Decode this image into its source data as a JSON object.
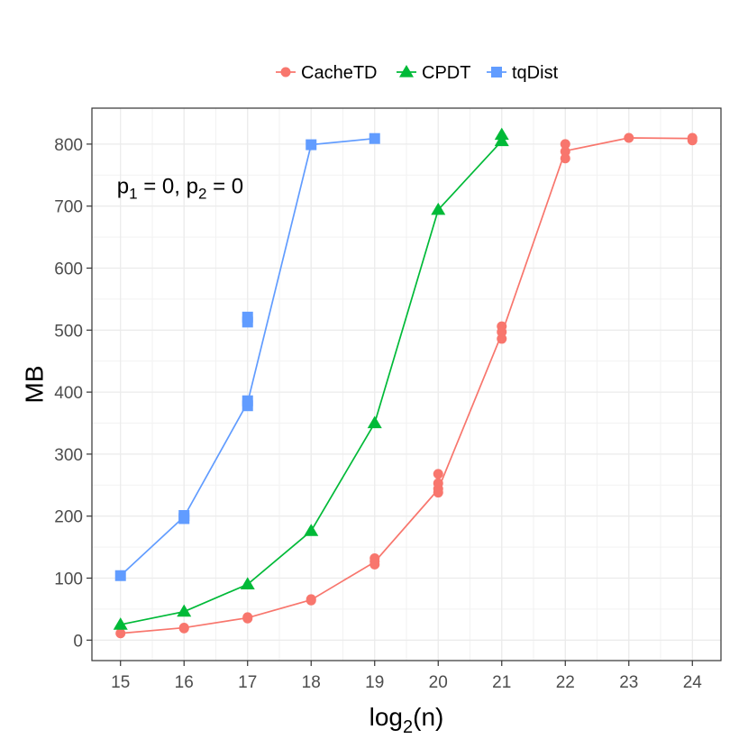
{
  "chart_data": {
    "type": "line",
    "title": "",
    "xlabel": "log",
    "xlabel_sub": "2",
    "xlabel_rest": "(n)",
    "ylabel": "MB",
    "xlim": [
      14.55,
      24.45
    ],
    "ylim": [
      -33,
      858
    ],
    "x_ticks": [
      15,
      16,
      17,
      18,
      19,
      20,
      21,
      22,
      23,
      24
    ],
    "y_ticks": [
      0,
      100,
      200,
      300,
      400,
      500,
      600,
      700,
      800
    ],
    "grid": true,
    "legend_position": "top",
    "annotation": {
      "var1": "p",
      "sub1": "1",
      "eq1": " = 0, ",
      "var2": "p",
      "sub2": "2",
      "eq2": " = 0",
      "x": 15,
      "y": 750
    },
    "series": [
      {
        "name": "CacheTD",
        "color": "#F8766D",
        "shape": "circle",
        "line": [
          [
            15,
            11
          ],
          [
            16,
            20
          ],
          [
            17,
            36
          ],
          [
            18,
            65
          ],
          [
            19,
            126
          ],
          [
            20,
            243
          ],
          [
            21,
            494
          ],
          [
            22,
            789
          ],
          [
            23,
            810
          ],
          [
            24,
            809
          ]
        ],
        "points": [
          [
            15,
            11
          ],
          [
            16,
            19
          ],
          [
            16,
            20
          ],
          [
            17,
            35
          ],
          [
            17,
            37
          ],
          [
            18,
            64
          ],
          [
            18,
            66
          ],
          [
            19,
            122
          ],
          [
            19,
            127
          ],
          [
            19,
            132
          ],
          [
            20,
            238
          ],
          [
            20,
            244
          ],
          [
            20,
            253
          ],
          [
            20,
            268
          ],
          [
            21,
            486
          ],
          [
            21,
            497
          ],
          [
            21,
            506
          ],
          [
            22,
            777
          ],
          [
            22,
            788
          ],
          [
            22,
            800
          ],
          [
            23,
            810
          ],
          [
            24,
            806
          ],
          [
            24,
            810
          ]
        ]
      },
      {
        "name": "CPDT",
        "color": "#00BA38",
        "shape": "triangle",
        "line": [
          [
            15,
            25
          ],
          [
            16,
            46
          ],
          [
            17,
            90
          ],
          [
            18,
            176
          ],
          [
            19,
            350
          ],
          [
            20,
            694
          ],
          [
            21,
            805
          ]
        ],
        "points": [
          [
            15,
            25
          ],
          [
            16,
            46
          ],
          [
            17,
            90
          ],
          [
            18,
            176
          ],
          [
            19,
            350
          ],
          [
            20,
            694
          ],
          [
            21,
            805
          ],
          [
            21,
            815
          ]
        ]
      },
      {
        "name": "tqDist",
        "color": "#619CFF",
        "shape": "square",
        "line": [
          [
            15,
            104
          ],
          [
            16,
            199
          ],
          [
            17,
            383
          ],
          [
            18,
            799
          ],
          [
            19,
            809
          ]
        ],
        "points": [
          [
            15,
            104
          ],
          [
            16,
            196
          ],
          [
            16,
            201
          ],
          [
            17,
            378
          ],
          [
            17,
            386
          ],
          [
            17,
            513
          ],
          [
            17,
            521
          ],
          [
            18,
            799
          ],
          [
            19,
            809
          ]
        ]
      }
    ]
  }
}
